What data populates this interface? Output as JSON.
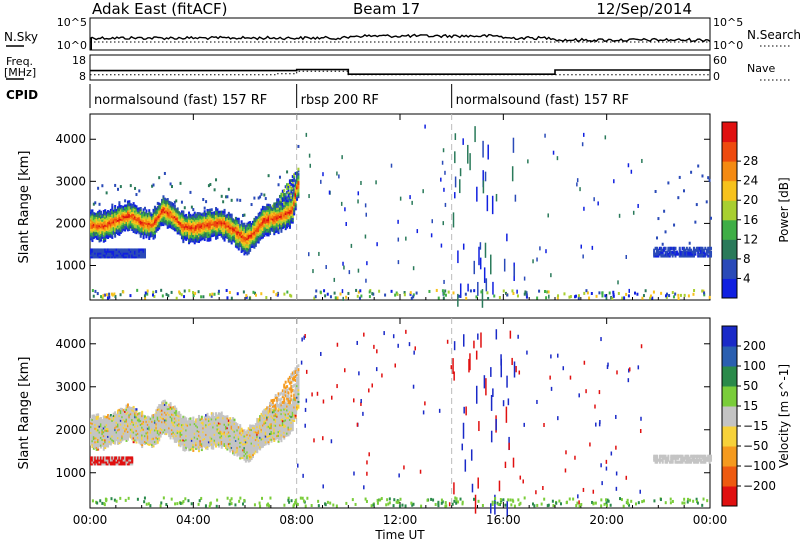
{
  "header": {
    "radar": "Adak East (fitACF)",
    "beam": "Beam 17",
    "date": "12/Sep/2014"
  },
  "strip": {
    "nsky_label": "N.Sky",
    "nsearch_label": "N.Search",
    "freq_label_1": "Freq.",
    "freq_label_2": "[MHz]",
    "nave_label": "Nave",
    "cpid_label": "CPID",
    "noise_ticks_left": [
      "10^5",
      "10^0"
    ],
    "noise_ticks_right": [
      "10^5",
      "10^0"
    ],
    "freq_ticks": [
      "18",
      "8"
    ],
    "nave_ticks": [
      "60",
      "0"
    ],
    "freq_steps": [
      {
        "t0": 0,
        "t1": 8,
        "mhz": 10.5
      },
      {
        "t0": 8,
        "t1": 10,
        "mhz": 11.0
      },
      {
        "t0": 10,
        "t1": 18,
        "mhz": 8.8
      },
      {
        "t0": 18,
        "t1": 24,
        "mhz": 10.8
      }
    ],
    "nave_steps": [
      {
        "t0": 0,
        "t1": 7.2,
        "n": 8
      },
      {
        "t0": 7.2,
        "t1": 8,
        "n": 10
      },
      {
        "t0": 8,
        "t1": 10,
        "n": 16
      },
      {
        "t0": 10,
        "t1": 24,
        "n": 8
      }
    ],
    "cpid_segments": [
      {
        "t0": 0,
        "t1": 8,
        "label": "normalsound (fast) 157 RF"
      },
      {
        "t0": 8,
        "t1": 14,
        "label": "rbsp 200 RF"
      },
      {
        "t0": 14,
        "t1": 24,
        "label": "normalsound (fast) 157 RF"
      }
    ]
  },
  "chart_data": [
    {
      "type": "heatmap",
      "title": "Power",
      "xlabel": "Time UT",
      "ylabel": "Slant Range [km]",
      "xlim": [
        0,
        24
      ],
      "ylim": [
        180,
        4600
      ],
      "x_ticks": [
        "00:00",
        "04:00",
        "08:00",
        "12:00",
        "16:00",
        "20:00",
        "00:00"
      ],
      "y_ticks": [
        "1000",
        "2000",
        "3000",
        "4000"
      ],
      "colorbar": {
        "label": "Power [dB]",
        "range": [
          0,
          32
        ],
        "ticks": [
          "4",
          "8",
          "12",
          "16",
          "20",
          "24",
          "28"
        ],
        "colors": [
          "#1020e0",
          "#2a4ab8",
          "#2a7a5a",
          "#3fae46",
          "#a8cf30",
          "#f7c21c",
          "#f48a12",
          "#ee4a0e",
          "#e01010"
        ]
      },
      "features": {
        "main_band_center_km": [
          [
            0.0,
            1950
          ],
          [
            0.5,
            1920
          ],
          [
            1.0,
            2050
          ],
          [
            1.5,
            2180
          ],
          [
            2.0,
            2000
          ],
          [
            2.4,
            1950
          ],
          [
            2.8,
            2300
          ],
          [
            3.2,
            2150
          ],
          [
            3.6,
            1900
          ],
          [
            4.0,
            1880
          ],
          [
            4.5,
            1950
          ],
          [
            5.0,
            2000
          ],
          [
            5.5,
            1850
          ],
          [
            6.0,
            1600
          ],
          [
            6.3,
            1750
          ],
          [
            6.7,
            2050
          ],
          [
            7.0,
            2100
          ],
          [
            7.4,
            2150
          ],
          [
            7.8,
            2300
          ],
          [
            8.0,
            2900
          ]
        ],
        "lower_band": {
          "t0": 0,
          "t1": 2,
          "range_km": 1300
        },
        "late_band": {
          "t0": 21.8,
          "t1": 24,
          "range_km": 1350
        }
      }
    },
    {
      "type": "heatmap",
      "title": "Velocity",
      "xlabel": "Time UT",
      "ylabel": "Slant Range [km]",
      "xlim": [
        0,
        24
      ],
      "ylim": [
        180,
        4600
      ],
      "x_ticks": [
        "00:00",
        "04:00",
        "08:00",
        "12:00",
        "16:00",
        "20:00",
        "00:00"
      ],
      "y_ticks": [
        "1000",
        "2000",
        "3000",
        "4000"
      ],
      "colorbar": {
        "label": "Velocity [m s^-1]",
        "ticks": [
          "200",
          "100",
          "50",
          "15",
          "−15",
          "−50",
          "−100",
          "−200"
        ],
        "colors": [
          "#1a2ac8",
          "#2a5fb0",
          "#2a8a4a",
          "#7acd3a",
          "#c4c4c4",
          "#f7d23a",
          "#f59a1e",
          "#ee5a10",
          "#e01010"
        ]
      }
    }
  ]
}
